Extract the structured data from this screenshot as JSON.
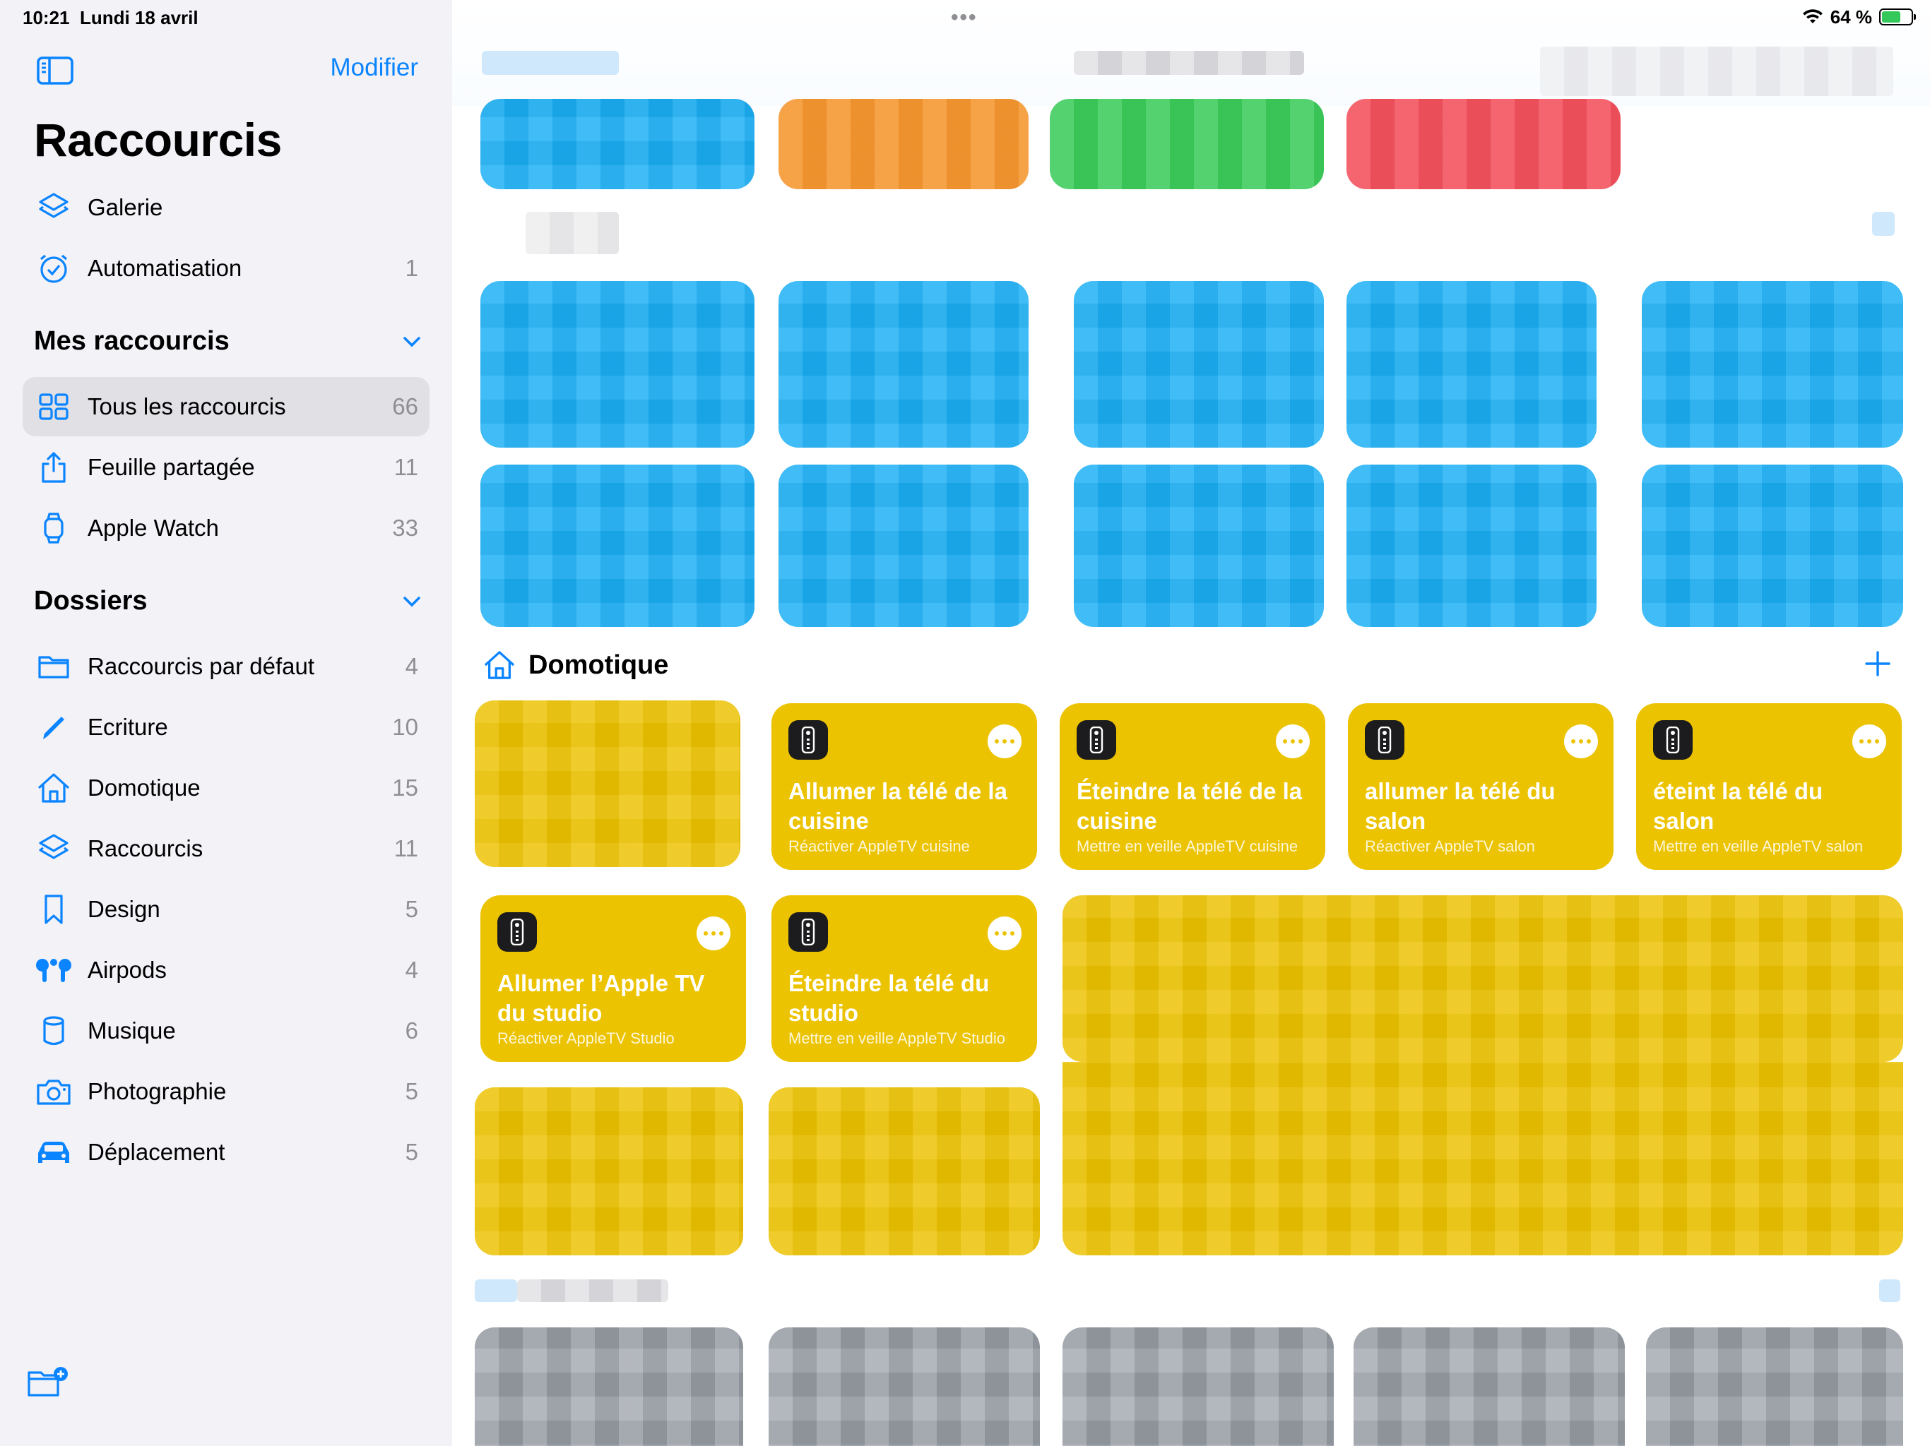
{
  "status": {
    "time": "10:21",
    "date": "Lundi 18 avril",
    "battery": "64 %",
    "battery_level": 0.64,
    "wifi_icon": "wifi-icon"
  },
  "sidebar": {
    "edit_label": "Modifier",
    "title": "Raccourcis",
    "top_items": [
      {
        "label": "Galerie",
        "count": "",
        "icon": "stack-icon"
      },
      {
        "label": "Automatisation",
        "count": "1",
        "icon": "clock-check-icon"
      }
    ],
    "my_shortcuts": {
      "header": "Mes raccourcis",
      "items": [
        {
          "label": "Tous les raccourcis",
          "count": "66",
          "icon": "grid-icon",
          "selected": true
        },
        {
          "label": "Feuille partagée",
          "count": "11",
          "icon": "share-icon"
        },
        {
          "label": "Apple Watch",
          "count": "33",
          "icon": "watch-icon"
        }
      ]
    },
    "folders": {
      "header": "Dossiers",
      "items": [
        {
          "label": "Raccourcis par défaut",
          "count": "4",
          "icon": "folder-icon"
        },
        {
          "label": "Ecriture",
          "count": "10",
          "icon": "pencil-icon"
        },
        {
          "label": "Domotique",
          "count": "15",
          "icon": "house-icon"
        },
        {
          "label": "Raccourcis",
          "count": "11",
          "icon": "stack-icon"
        },
        {
          "label": "Design",
          "count": "5",
          "icon": "bookmark-icon"
        },
        {
          "label": "Airpods",
          "count": "4",
          "icon": "airpods-icon"
        },
        {
          "label": "Musique",
          "count": "6",
          "icon": "cylinder-icon"
        },
        {
          "label": "Photographie",
          "count": "5",
          "icon": "camera-icon"
        },
        {
          "label": "Déplacement",
          "count": "5",
          "icon": "car-icon"
        }
      ]
    }
  },
  "main": {
    "section_title": "Domotique",
    "cards": [
      {
        "title": "Allumer la télé de la cuisine",
        "subtitle": "Réactiver AppleTV cuisine"
      },
      {
        "title": "Éteindre la télé de la cuisine",
        "subtitle": "Mettre en veille AppleTV cuisine"
      },
      {
        "title": "allumer la télé du salon",
        "subtitle": "Réactiver AppleTV salon"
      },
      {
        "title": "éteint la télé du salon",
        "subtitle": "Mettre en veille AppleTV salon"
      },
      {
        "title": "Allumer l’Apple TV du studio",
        "subtitle": "Réactiver AppleTV Studio"
      },
      {
        "title": "Éteindre la télé du studio",
        "subtitle": "Mettre en veille AppleTV Studio"
      }
    ],
    "colors": {
      "accent": "#0a84ff",
      "card_yellow": "#ecc300",
      "tile_blue": "#19aef4",
      "tile_orange": "#f5962f",
      "tile_green": "#3ccc5c",
      "tile_red": "#f2505c"
    }
  }
}
